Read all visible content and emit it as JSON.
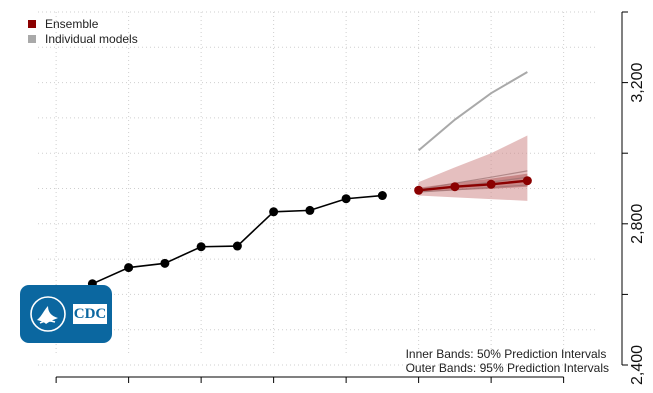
{
  "legend": {
    "items": [
      {
        "label": "Ensemble",
        "color": "#8b0000"
      },
      {
        "label": "Individual models",
        "color": "#a9a9a9"
      }
    ]
  },
  "notes": {
    "inner": "Inner Bands: 50% Prediction Intervals",
    "outer": "Outer Bands: 95% Prediction Intervals"
  },
  "logo": {
    "text": "CDC"
  },
  "chart_data": {
    "type": "line",
    "title": "",
    "xlabel": "",
    "ylabel": "",
    "ylim": [
      2400,
      3400
    ],
    "y_ticks": [
      2400,
      2800,
      3200
    ],
    "y_tick_labels": [
      "2,400",
      "2,800",
      "3,200"
    ],
    "y_axis_position": "right",
    "grid": true,
    "legend_position": "top-left",
    "x_range": [
      -7.5,
      8.5
    ],
    "observed": {
      "x": [
        -7,
        -6,
        -5,
        -4,
        -3,
        -2,
        -1,
        0,
        1,
        2
      ],
      "y": [
        2575,
        2630,
        2676,
        2688,
        2735,
        2737,
        2834,
        2838,
        2871,
        2880
      ]
    },
    "ensemble": {
      "name": "Ensemble",
      "x": [
        3,
        4,
        5,
        6
      ],
      "y": [
        2895,
        2905,
        2912,
        2922
      ],
      "pi50_lower": [
        2890,
        2895,
        2899,
        2905
      ],
      "pi50_upper": [
        2902,
        2916,
        2928,
        2942
      ],
      "pi95_lower": [
        2880,
        2875,
        2870,
        2865
      ],
      "pi95_upper": [
        2918,
        2960,
        3000,
        3050
      ]
    },
    "individual_models": [
      {
        "x": [
          3,
          4,
          5,
          6
        ],
        "y": [
          3008,
          3095,
          3170,
          3230
        ]
      },
      {
        "x": [
          3,
          4,
          5,
          6
        ],
        "y": [
          2897,
          2915,
          2932,
          2950
        ]
      },
      {
        "x": [
          3,
          4,
          5,
          6
        ],
        "y": [
          2893,
          2905,
          2918,
          2932
        ]
      },
      {
        "x": [
          3,
          4,
          5,
          6
        ],
        "y": [
          2890,
          2896,
          2903,
          2910
        ]
      }
    ]
  }
}
